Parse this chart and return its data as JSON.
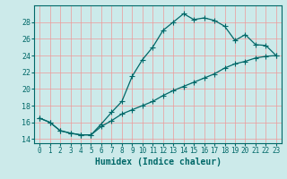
{
  "title": "",
  "xlabel": "Humidex (Indice chaleur)",
  "ylabel": "",
  "bg_color": "#cceaea",
  "grid_color": "#ee9999",
  "line_color": "#006868",
  "x_curve": [
    0,
    1,
    2,
    3,
    4,
    5,
    6,
    7,
    8,
    9,
    10,
    11,
    12,
    13,
    14,
    15,
    16,
    17,
    18,
    19,
    20,
    21,
    22,
    23
  ],
  "y_curve": [
    16.5,
    16.0,
    15.0,
    14.7,
    14.5,
    14.5,
    15.8,
    17.2,
    18.5,
    21.5,
    23.5,
    25.0,
    27.0,
    28.0,
    29.0,
    28.3,
    28.5,
    28.2,
    27.5,
    25.8,
    26.5,
    25.3,
    25.2,
    24.0
  ],
  "x_linear": [
    0,
    1,
    2,
    3,
    4,
    5,
    6,
    7,
    8,
    9,
    10,
    11,
    12,
    13,
    14,
    15,
    16,
    17,
    18,
    19,
    20,
    21,
    22,
    23
  ],
  "y_linear": [
    16.5,
    16.0,
    15.0,
    14.7,
    14.5,
    14.5,
    15.5,
    16.2,
    17.0,
    17.5,
    18.0,
    18.5,
    19.2,
    19.8,
    20.3,
    20.8,
    21.3,
    21.8,
    22.5,
    23.0,
    23.3,
    23.7,
    23.9,
    24.0
  ],
  "xlim": [
    -0.5,
    23.5
  ],
  "ylim": [
    13.5,
    30.0
  ],
  "yticks": [
    14,
    16,
    18,
    20,
    22,
    24,
    26,
    28
  ],
  "xticks": [
    0,
    1,
    2,
    3,
    4,
    5,
    6,
    7,
    8,
    9,
    10,
    11,
    12,
    13,
    14,
    15,
    16,
    17,
    18,
    19,
    20,
    21,
    22,
    23
  ],
  "xlabel_fontsize": 7,
  "tick_fontsize": 5.5,
  "marker": "+",
  "markersize": 4,
  "linewidth": 0.9
}
